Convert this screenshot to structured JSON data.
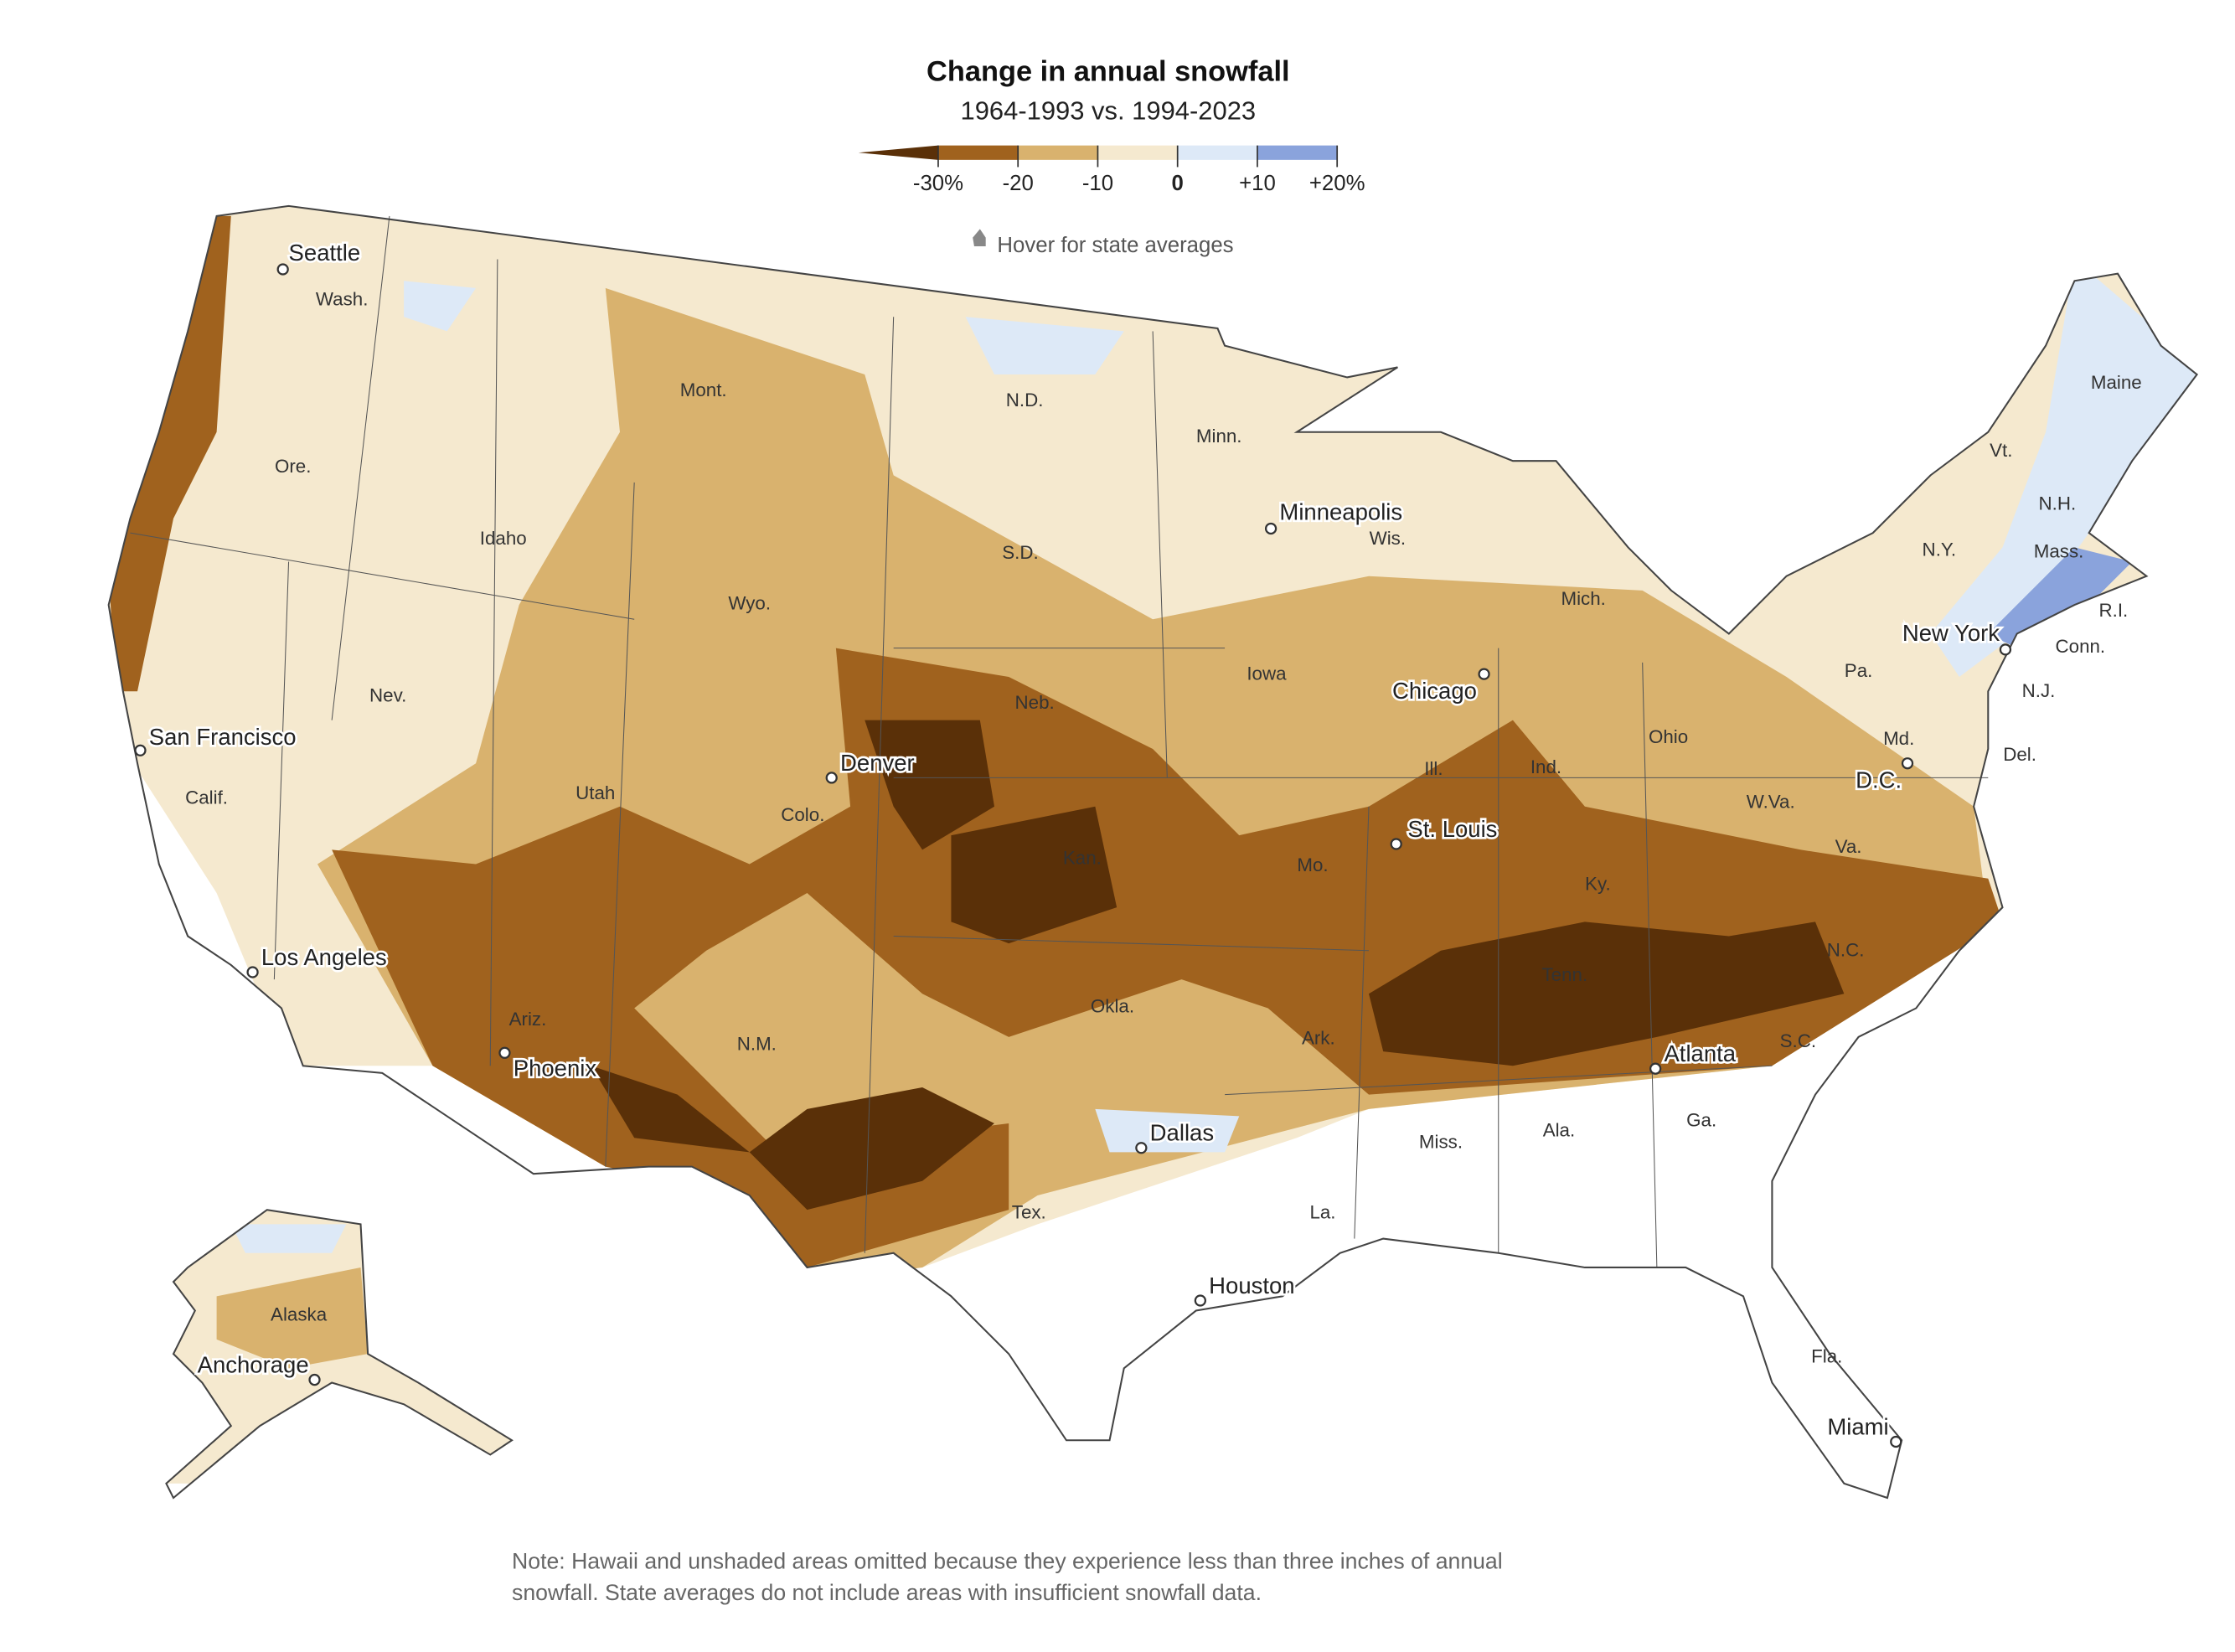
{
  "header": {
    "title": "Change in annual snowfall",
    "subtitle": "1964-1993 vs. 1994-2023"
  },
  "legend": {
    "colors": [
      "#5a3008",
      "#a0621e",
      "#d9b26e",
      "#f5e9cf",
      "#dde9f7",
      "#8aa3dc"
    ],
    "ticks": [
      {
        "value": -30,
        "label": "-30%"
      },
      -20,
      -10,
      0,
      {
        "value": 10,
        "label": "+10"
      },
      {
        "value": 20,
        "label": "+20%"
      }
    ]
  },
  "hint": "Hover for state averages",
  "states": [
    "Wash.",
    "Ore.",
    "Calif.",
    "Nev.",
    "Idaho",
    "Mont.",
    "Wyo.",
    "Utah",
    "Colo.",
    "Ariz.",
    "N.M.",
    "N.D.",
    "S.D.",
    "Neb.",
    "Kan.",
    "Okla.",
    "Tex.",
    "Minn.",
    "Iowa",
    "Mo.",
    "Ark.",
    "La.",
    "Wis.",
    "Ill.",
    "Mich.",
    "Ind.",
    "Ohio",
    "Ky.",
    "Tenn.",
    "Miss.",
    "Ala.",
    "Ga.",
    "Fla.",
    "S.C.",
    "N.C.",
    "Va.",
    "W.Va.",
    "Pa.",
    "N.Y.",
    "Md.",
    "Vt.",
    "N.H.",
    "Maine",
    "Mass.",
    "R.I.",
    "Conn.",
    "N.J.",
    "Del.",
    "Alaska"
  ],
  "cities": [
    "Seattle",
    "San Francisco",
    "Los Angeles",
    "Phoenix",
    "Denver",
    "Minneapolis",
    "Chicago",
    "St. Louis",
    "Dallas",
    "Houston",
    "Atlanta",
    "Miami",
    "New York",
    "D.C.",
    "Anchorage"
  ],
  "note": [
    "Note: Hawaii and unshaded areas omitted because they experience less than three inches of annual",
    "snowfall. State averages do not include areas with insufficient snowfall data."
  ]
}
